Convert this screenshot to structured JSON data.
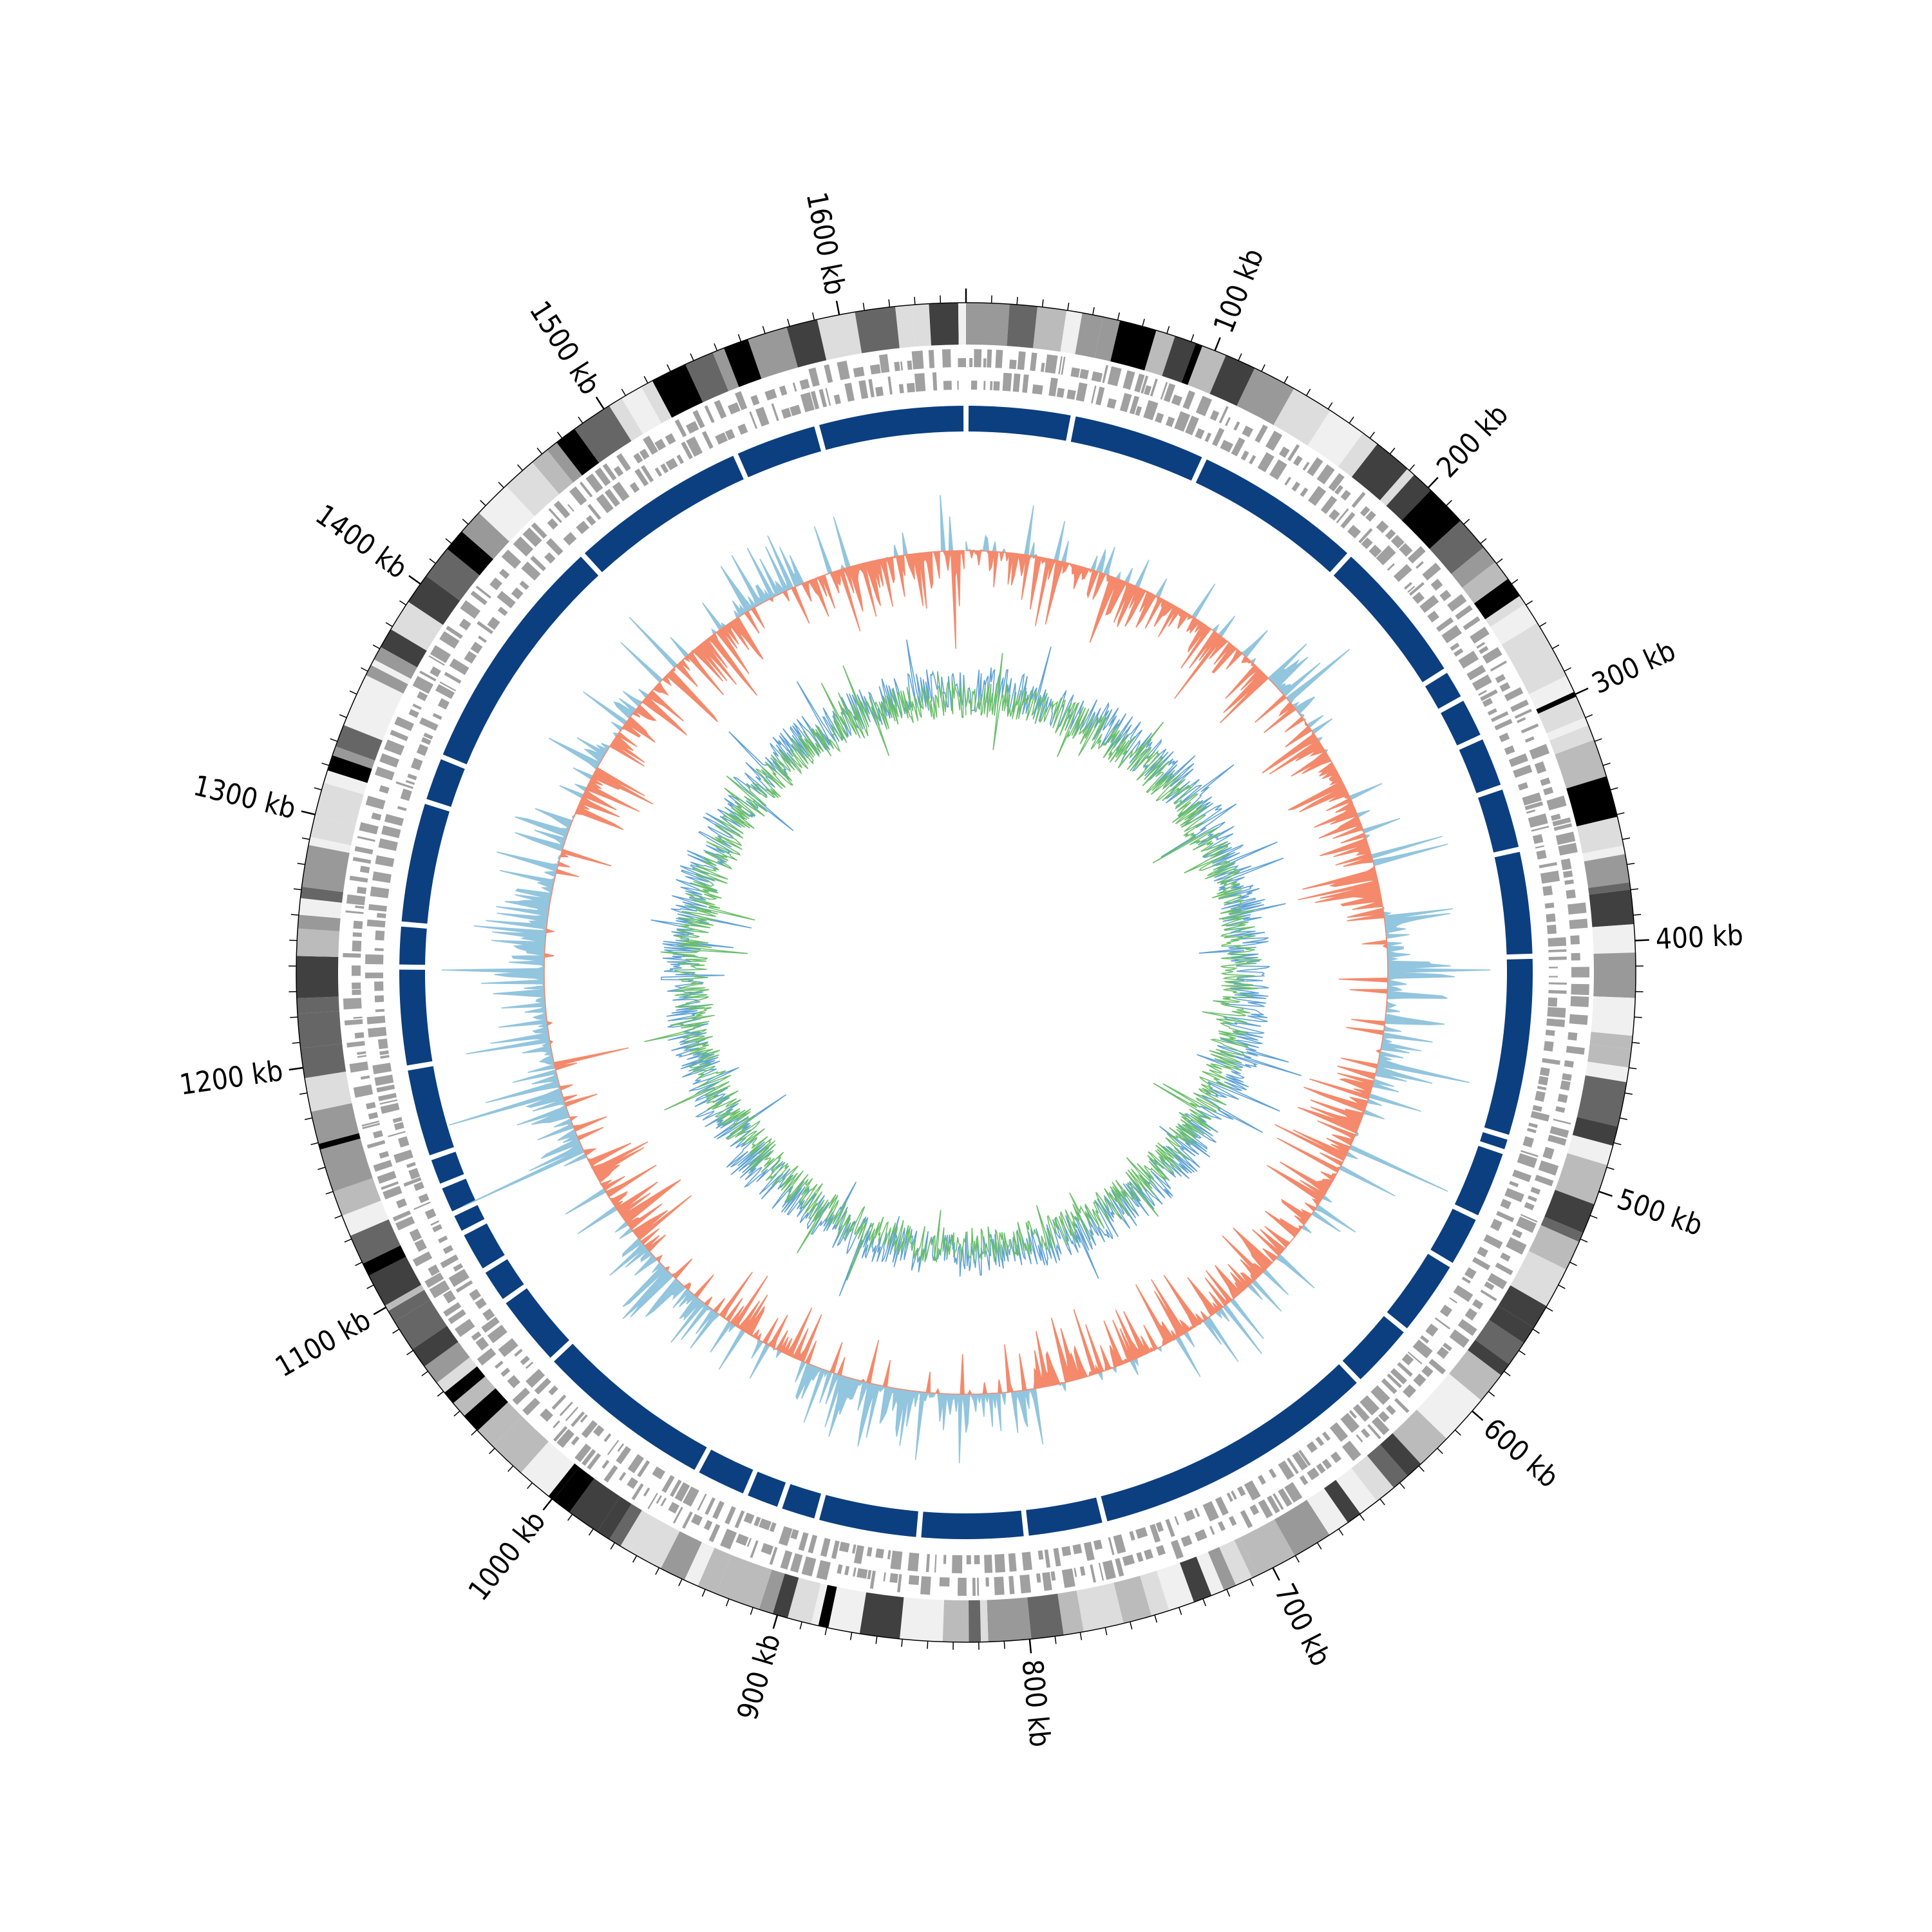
{
  "chart_data": {
    "type": "circular-genome-map",
    "genome_length_kb": 1650,
    "axis": {
      "unit": "kb",
      "major_step_kb": 100,
      "minor_step_kb": 10,
      "labels": [
        "100 kb",
        "200 kb",
        "300 kb",
        "400 kb",
        "500 kb",
        "600 kb",
        "700 kb",
        "800 kb",
        "900 kb",
        "1000 kb",
        "1100 kb",
        "1200 kb",
        "1300 kb",
        "1400 kb",
        "1500 kb",
        "1600 kb"
      ]
    },
    "tracks": [
      {
        "name": "ideogram",
        "kind": "grayscale-bands",
        "colors": [
          "#000000",
          "#404040",
          "#666666",
          "#999999",
          "#bbbbbb",
          "#dddddd",
          "#f0f0f0"
        ]
      },
      {
        "name": "genes",
        "kind": "stranded-features",
        "color": "#a0a0a0"
      },
      {
        "name": "contigs",
        "kind": "blocks",
        "color": "#0b3f80",
        "gaps_kb": [
          0,
          50,
          114,
          195,
          265,
          280,
          300,
          325,
          355,
          405,
          490,
          497,
          530,
          555,
          592,
          624,
          760,
          797,
          847,
          895,
          913,
          930,
          955,
          1040,
          1075,
          1092,
          1112,
          1122,
          1136,
          1150,
          1193,
          1240,
          1260,
          1318,
          1340,
          1455,
          1540,
          1580
        ]
      },
      {
        "name": "gc-skew",
        "kind": "bidirectional-histogram",
        "positive_color": "#92c5de",
        "negative_color": "#f4896b"
      },
      {
        "name": "gc-content",
        "kind": "line",
        "colors": [
          "#5fa2d5",
          "#6bbf6b"
        ]
      }
    ]
  }
}
